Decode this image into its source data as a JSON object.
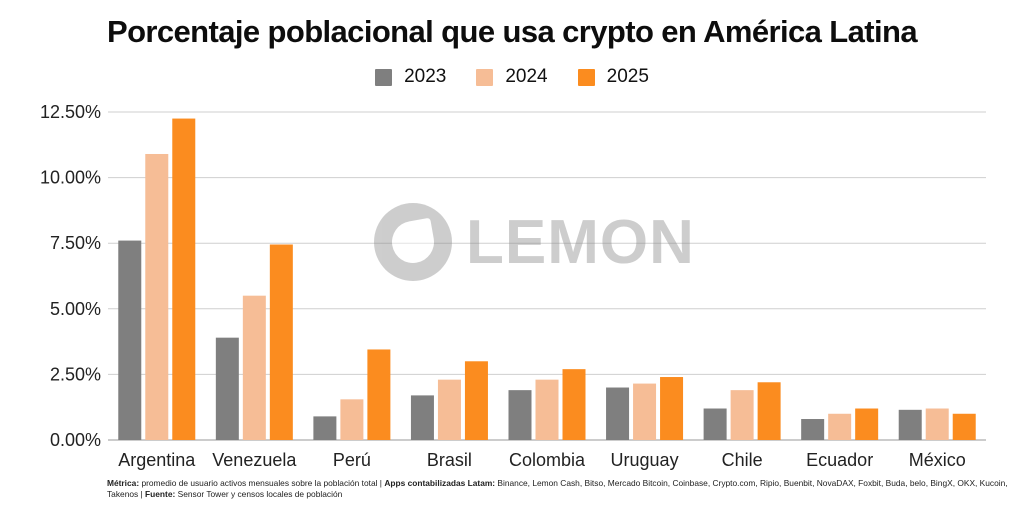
{
  "chart_data": {
    "type": "bar",
    "title": "Porcentaje poblacional que usa crypto en América Latina",
    "categories": [
      "Argentina",
      "Venezuela",
      "Perú",
      "Brasil",
      "Colombia",
      "Uruguay",
      "Chile",
      "Ecuador",
      "México"
    ],
    "series": [
      {
        "name": "2023",
        "color": "#7f7f7f",
        "values": [
          7.6,
          3.9,
          0.9,
          1.7,
          1.9,
          2.0,
          1.2,
          0.8,
          1.15
        ]
      },
      {
        "name": "2024",
        "color": "#f6bd96",
        "values": [
          10.9,
          5.5,
          1.55,
          2.3,
          2.3,
          2.15,
          1.9,
          1.0,
          1.2
        ]
      },
      {
        "name": "2025",
        "color": "#fb8c1f",
        "values": [
          12.25,
          7.45,
          3.45,
          3.0,
          2.7,
          2.4,
          2.2,
          1.2,
          1.0
        ]
      }
    ],
    "y_ticks": [
      "0.00%",
      "2.50%",
      "5.00%",
      "7.50%",
      "10.00%",
      "12.50%"
    ],
    "y_tick_values": [
      0,
      2.5,
      5,
      7.5,
      10,
      12.5
    ],
    "ylim": [
      0,
      12.5
    ],
    "xlabel": "",
    "ylabel": "",
    "grid": true,
    "legend_position": "top-center"
  },
  "watermark": {
    "text": "LEMON",
    "icon": "lemon-logo-icon"
  },
  "footnote": {
    "metrica_label": "Métrica:",
    "metrica_text": " promedio de usuario activos mensuales sobre la población total | ",
    "apps_label": "Apps contabilizadas Latam:",
    "apps_text": " Binance, Lemon Cash, Bitso, Mercado Bitcoin, Coinbase, Crypto.com, Ripio, Buenbit, NovaDAX, Foxbit, Buda, belo, BingX, OKX, Kucoin, Takenos | ",
    "fuente_label": "Fuente:",
    "fuente_text": " Sensor Tower y censos locales de población"
  }
}
